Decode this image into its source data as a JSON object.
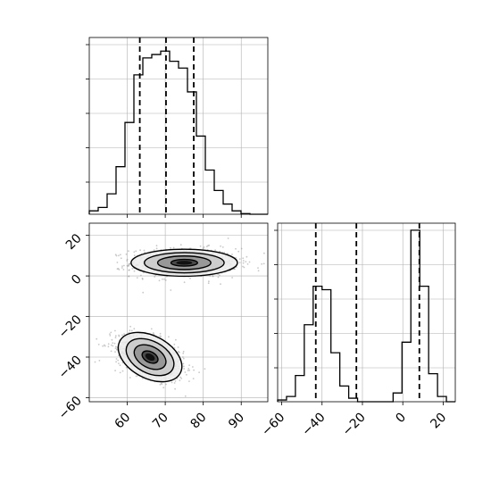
{
  "chart_data": {
    "type": "corner",
    "title": "",
    "xlabel": "",
    "ylabel": "",
    "grid": true,
    "x_ticks": [
      60,
      70,
      80,
      90
    ],
    "x_tick_labels": [
      "60",
      "70",
      "80",
      "90"
    ],
    "y_ticks": [
      -60,
      -40,
      -20,
      0,
      20
    ],
    "y_tick_labels": [
      "−60",
      "−40",
      "−20",
      "0",
      "20"
    ],
    "panels": [
      {
        "id": "hist-x",
        "type": "histogram",
        "xlim": [
          50,
          97
        ],
        "ylim": [
          0,
          0.052
        ],
        "bin_edges": [
          50.0,
          52.35,
          54.7,
          57.05,
          59.4,
          61.75,
          64.1,
          66.45,
          68.8,
          71.15,
          73.5,
          75.85,
          78.2,
          80.55,
          82.9,
          85.25,
          87.6,
          89.95,
          92.3,
          94.65,
          97.0
        ],
        "density": [
          0.001,
          0.002,
          0.006,
          0.014,
          0.027,
          0.041,
          0.046,
          0.047,
          0.048,
          0.045,
          0.043,
          0.036,
          0.023,
          0.013,
          0.007,
          0.003,
          0.001,
          0.0002,
          0,
          0
        ],
        "quantiles": [
          63.3,
          70.2,
          77.5
        ]
      },
      {
        "id": "scatter-xy",
        "type": "scatter_density",
        "xlim": [
          50,
          97
        ],
        "ylim": [
          -62,
          26
        ],
        "clusters": [
          {
            "center": [
              75,
              6.5
            ],
            "spread": [
              7,
              3.5
            ],
            "corr": 0
          },
          {
            "center": [
              66,
              -40
            ],
            "spread": [
              4.5,
              5.5
            ],
            "corr": -0.45
          }
        ],
        "contour_levels": [
          "0.5",
          "1.0",
          "1.5",
          "2.0"
        ]
      },
      {
        "id": "hist-y",
        "type": "histogram",
        "xlim": [
          -62,
          26
        ],
        "ylim": [
          0,
          0.102
        ],
        "bin_edges": [
          -62.0,
          -57.6,
          -53.2,
          -48.8,
          -44.4,
          -40.0,
          -35.6,
          -31.2,
          -26.8,
          -22.4,
          -18.0,
          -13.6,
          -9.2,
          -4.8,
          -0.4,
          4.0,
          8.4,
          12.8,
          17.2,
          21.6,
          26.0
        ],
        "density": [
          0.001,
          0.003,
          0.015,
          0.044,
          0.066,
          0.064,
          0.028,
          0.009,
          0.002,
          0.0,
          0.0,
          0.0,
          0.0,
          0.005,
          0.034,
          0.098,
          0.066,
          0.016,
          0.003,
          0
        ],
        "quantiles": [
          -43.1,
          -23.0,
          8.2
        ]
      }
    ]
  },
  "colors": {
    "line": "#000000",
    "grid": "#b0b0b0",
    "background": "#ffffff",
    "points": "#9a9a9a"
  }
}
